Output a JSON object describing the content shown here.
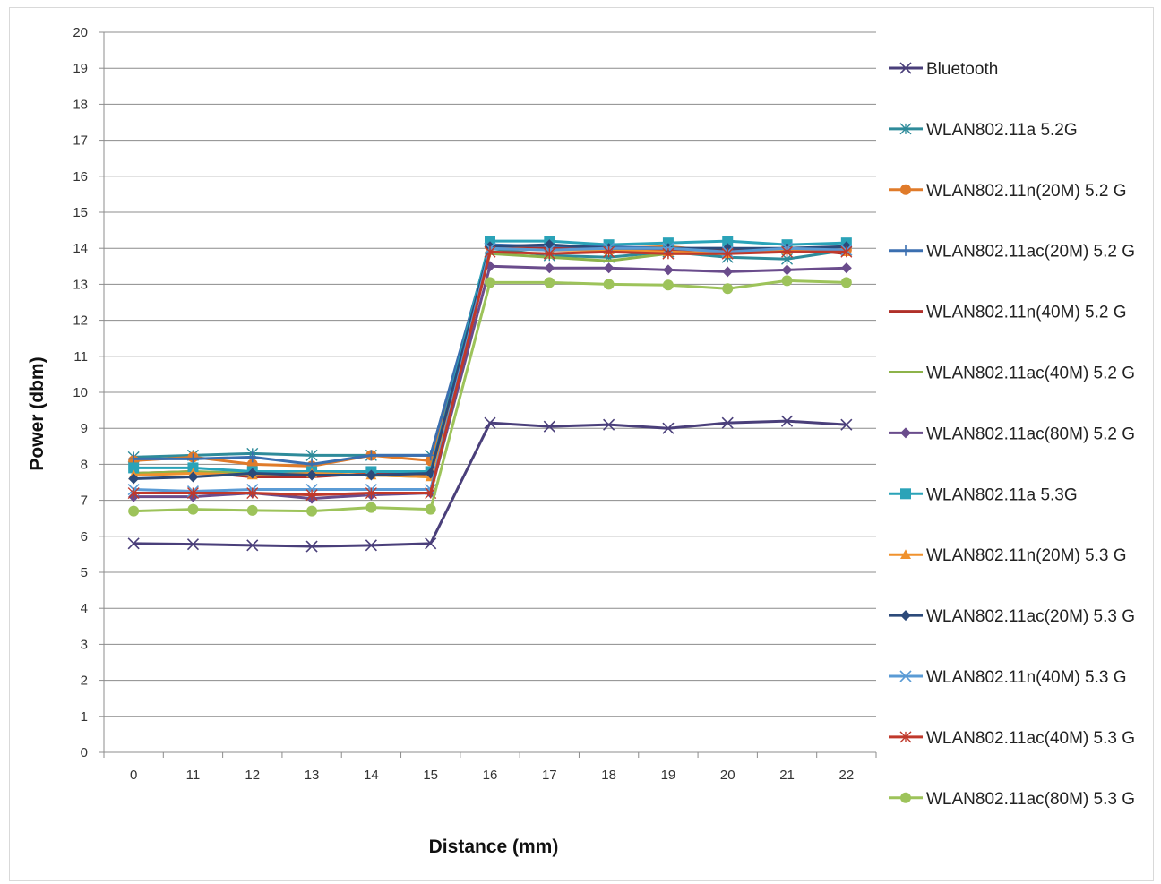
{
  "chart_data": {
    "type": "line",
    "title": "",
    "xlabel": "Distance (mm)",
    "ylabel": "Power (dbm)",
    "ylim": [
      0,
      20
    ],
    "y_ticks": [
      "0",
      "1",
      "2",
      "3",
      "4",
      "5",
      "6",
      "7",
      "8",
      "9",
      "10",
      "11",
      "12",
      "13",
      "14",
      "15",
      "16",
      "17",
      "18",
      "19",
      "20"
    ],
    "categories": [
      "0",
      "11",
      "12",
      "13",
      "14",
      "15",
      "16",
      "17",
      "18",
      "19",
      "20",
      "21",
      "22"
    ],
    "grid": "horizontal",
    "legend_position": "right",
    "series": [
      {
        "name": "Bluetooth",
        "color": "#4a3f7a",
        "marker": "x",
        "values": [
          5.8,
          5.78,
          5.75,
          5.72,
          5.75,
          5.8,
          9.15,
          9.05,
          9.1,
          9.0,
          9.15,
          9.2,
          9.1
        ]
      },
      {
        "name": "WLAN802.11a 5.2G",
        "color": "#2e8b9a",
        "marker": "star",
        "values": [
          8.2,
          8.25,
          8.3,
          8.25,
          8.25,
          8.25,
          14.0,
          13.8,
          13.75,
          13.9,
          13.75,
          13.7,
          13.95
        ]
      },
      {
        "name": "WLAN802.11n(20M) 5.2 G",
        "color": "#e07b2a",
        "marker": "circle",
        "values": [
          8.1,
          8.2,
          8.0,
          7.95,
          8.25,
          8.1,
          14.05,
          14.05,
          14.0,
          14.05,
          13.9,
          14.0,
          13.95
        ]
      },
      {
        "name": "WLAN802.11ac(20M) 5.2 G",
        "color": "#3b6fb0",
        "marker": "plus",
        "values": [
          8.15,
          8.15,
          8.2,
          8.0,
          8.25,
          8.25,
          14.1,
          14.05,
          14.05,
          14.0,
          14.0,
          13.95,
          14.05
        ]
      },
      {
        "name": "WLAN802.11n(40M) 5.2 G",
        "color": "#b0302a",
        "marker": "none",
        "values": [
          7.75,
          7.8,
          7.65,
          7.65,
          7.75,
          7.7,
          14.0,
          14.0,
          13.95,
          13.95,
          13.95,
          14.0,
          13.85
        ]
      },
      {
        "name": "WLAN802.11ac(40M) 5.2 G",
        "color": "#8db34a",
        "marker": "none",
        "values": [
          7.75,
          7.8,
          7.75,
          7.7,
          7.7,
          7.65,
          13.85,
          13.75,
          13.65,
          13.85,
          13.85,
          13.95,
          13.9
        ]
      },
      {
        "name": "WLAN802.11ac(80M) 5.2 G",
        "color": "#6a4c8c",
        "marker": "diamond",
        "values": [
          7.1,
          7.1,
          7.2,
          7.05,
          7.15,
          7.2,
          13.5,
          13.45,
          13.45,
          13.4,
          13.35,
          13.4,
          13.45
        ]
      },
      {
        "name": "WLAN802.11a 5.3G",
        "color": "#2aa3b8",
        "marker": "square",
        "values": [
          7.9,
          7.9,
          7.8,
          7.8,
          7.8,
          7.8,
          14.2,
          14.2,
          14.1,
          14.15,
          14.2,
          14.1,
          14.15
        ]
      },
      {
        "name": "WLAN802.11n(20M) 5.3 G",
        "color": "#f0922e",
        "marker": "triangle",
        "values": [
          7.7,
          7.75,
          7.7,
          7.75,
          7.7,
          7.65,
          14.0,
          13.95,
          13.95,
          13.9,
          13.85,
          13.95,
          13.9
        ]
      },
      {
        "name": "WLAN802.11ac(20M) 5.3 G",
        "color": "#2c4a7a",
        "marker": "diamond",
        "values": [
          7.6,
          7.65,
          7.75,
          7.7,
          7.7,
          7.75,
          14.05,
          14.1,
          14.0,
          14.0,
          14.0,
          14.0,
          14.05
        ]
      },
      {
        "name": "WLAN802.11n(40M) 5.3 G",
        "color": "#5a9bd5",
        "marker": "x",
        "values": [
          7.3,
          7.25,
          7.3,
          7.3,
          7.3,
          7.3,
          14.0,
          13.95,
          14.0,
          14.0,
          13.9,
          14.0,
          13.95
        ]
      },
      {
        "name": "WLAN802.11ac(40M) 5.3 G",
        "color": "#c0392b",
        "marker": "star",
        "values": [
          7.2,
          7.2,
          7.2,
          7.15,
          7.2,
          7.2,
          13.9,
          13.85,
          13.9,
          13.85,
          13.85,
          13.9,
          13.9
        ]
      },
      {
        "name": "WLAN802.11ac(80M) 5.3 G",
        "color": "#9dc35a",
        "marker": "circle",
        "values": [
          6.7,
          6.75,
          6.72,
          6.7,
          6.8,
          6.75,
          13.05,
          13.05,
          13.0,
          12.98,
          12.88,
          13.1,
          13.05
        ]
      }
    ]
  }
}
